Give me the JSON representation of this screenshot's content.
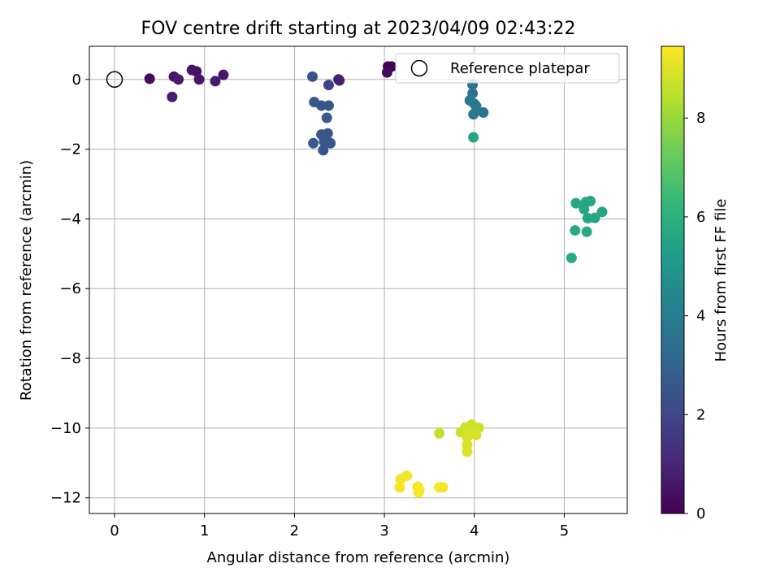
{
  "chart_data": {
    "type": "scatter",
    "title": "FOV centre drift starting at 2023/04/09 02:43:22",
    "xlabel": "Angular distance from reference (arcmin)",
    "ylabel": "Rotation from reference (arcmin)",
    "xlim": [
      -0.28,
      5.7
    ],
    "ylim": [
      -12.45,
      0.95
    ],
    "xticks": [
      0,
      1,
      2,
      3,
      4,
      5
    ],
    "yticks": [
      0,
      -2,
      -4,
      -6,
      -8,
      -10,
      -12
    ],
    "grid": true,
    "legend": {
      "placement": "top-right",
      "entries": [
        "Reference platepar"
      ]
    },
    "colorbar": {
      "label": "Hours from first FF file",
      "range": [
        0,
        9.45
      ],
      "ticks": [
        0,
        2,
        4,
        6,
        8
      ],
      "colormap": "viridis"
    },
    "reference_point": {
      "name": "Reference platepar",
      "x": 0,
      "y": 0,
      "marker": "open-circle"
    },
    "series": [
      {
        "points": [
          {
            "x": 0.39,
            "y": 0.02,
            "c": 0.3
          },
          {
            "x": 0.66,
            "y": 0.08,
            "c": 0.6
          },
          {
            "x": 0.71,
            "y": 0.0,
            "c": 0.7
          },
          {
            "x": 0.64,
            "y": -0.5,
            "c": 0.8
          },
          {
            "x": 0.86,
            "y": 0.27,
            "c": 0.5
          },
          {
            "x": 0.91,
            "y": 0.23,
            "c": 0.5
          },
          {
            "x": 0.94,
            "y": 0.0,
            "c": 0.6
          },
          {
            "x": 1.12,
            "y": -0.05,
            "c": 0.7
          },
          {
            "x": 1.21,
            "y": 0.13,
            "c": 0.6
          },
          {
            "x": 2.2,
            "y": 0.08,
            "c": 2.4
          },
          {
            "x": 2.38,
            "y": -0.16,
            "c": 1.9
          },
          {
            "x": 2.5,
            "y": -0.03,
            "c": 1.0
          },
          {
            "x": 2.49,
            "y": 0.0,
            "c": 0.8
          },
          {
            "x": 2.22,
            "y": -0.65,
            "c": 2.6
          },
          {
            "x": 2.3,
            "y": -0.75,
            "c": 2.5
          },
          {
            "x": 2.38,
            "y": -0.75,
            "c": 2.5
          },
          {
            "x": 2.36,
            "y": -1.1,
            "c": 2.7
          },
          {
            "x": 2.3,
            "y": -1.58,
            "c": 2.6
          },
          {
            "x": 2.37,
            "y": -1.55,
            "c": 2.6
          },
          {
            "x": 2.21,
            "y": -1.83,
            "c": 2.7
          },
          {
            "x": 2.33,
            "y": -1.78,
            "c": 2.6
          },
          {
            "x": 2.4,
            "y": -1.83,
            "c": 2.6
          },
          {
            "x": 2.32,
            "y": -2.03,
            "c": 2.5
          },
          {
            "x": 3.04,
            "y": 0.37,
            "c": 0.0
          },
          {
            "x": 3.08,
            "y": 0.37,
            "c": 0.0
          },
          {
            "x": 3.03,
            "y": 0.2,
            "c": 0.3
          },
          {
            "x": 3.98,
            "y": -0.15,
            "c": 3.6
          },
          {
            "x": 3.98,
            "y": -0.4,
            "c": 3.7
          },
          {
            "x": 3.95,
            "y": -0.6,
            "c": 3.8
          },
          {
            "x": 4.0,
            "y": -0.7,
            "c": 3.8
          },
          {
            "x": 4.02,
            "y": -0.77,
            "c": 3.8
          },
          {
            "x": 3.99,
            "y": -1.0,
            "c": 3.8
          },
          {
            "x": 4.1,
            "y": -0.95,
            "c": 3.7
          },
          {
            "x": 3.99,
            "y": -1.66,
            "c": 5.5
          },
          {
            "x": 5.13,
            "y": -3.55,
            "c": 5.6
          },
          {
            "x": 5.22,
            "y": -3.72,
            "c": 5.6
          },
          {
            "x": 5.24,
            "y": -3.52,
            "c": 5.6
          },
          {
            "x": 5.29,
            "y": -3.49,
            "c": 5.6
          },
          {
            "x": 5.26,
            "y": -3.98,
            "c": 5.6
          },
          {
            "x": 5.34,
            "y": -3.97,
            "c": 5.6
          },
          {
            "x": 5.42,
            "y": -3.8,
            "c": 5.6
          },
          {
            "x": 5.12,
            "y": -4.33,
            "c": 5.7
          },
          {
            "x": 5.25,
            "y": -4.37,
            "c": 5.7
          },
          {
            "x": 5.08,
            "y": -5.12,
            "c": 5.8
          },
          {
            "x": 3.61,
            "y": -10.15,
            "c": 8.6
          },
          {
            "x": 3.85,
            "y": -10.12,
            "c": 8.7
          },
          {
            "x": 3.9,
            "y": -9.98,
            "c": 8.8
          },
          {
            "x": 3.94,
            "y": -10.05,
            "c": 8.8
          },
          {
            "x": 3.97,
            "y": -9.9,
            "c": 8.8
          },
          {
            "x": 4.05,
            "y": -9.99,
            "c": 8.8
          },
          {
            "x": 3.96,
            "y": -10.16,
            "c": 8.9
          },
          {
            "x": 4.02,
            "y": -10.2,
            "c": 8.9
          },
          {
            "x": 3.92,
            "y": -10.26,
            "c": 8.9
          },
          {
            "x": 3.92,
            "y": -10.48,
            "c": 8.9
          },
          {
            "x": 3.92,
            "y": -10.68,
            "c": 9.0
          },
          {
            "x": 3.18,
            "y": -11.47,
            "c": 9.3
          },
          {
            "x": 3.25,
            "y": -11.37,
            "c": 9.3
          },
          {
            "x": 3.17,
            "y": -11.7,
            "c": 9.3
          },
          {
            "x": 3.37,
            "y": -11.68,
            "c": 9.3
          },
          {
            "x": 3.39,
            "y": -11.78,
            "c": 9.4
          },
          {
            "x": 3.38,
            "y": -11.85,
            "c": 9.4
          },
          {
            "x": 3.61,
            "y": -11.7,
            "c": 9.3
          },
          {
            "x": 3.65,
            "y": -11.7,
            "c": 9.3
          }
        ]
      }
    ]
  }
}
